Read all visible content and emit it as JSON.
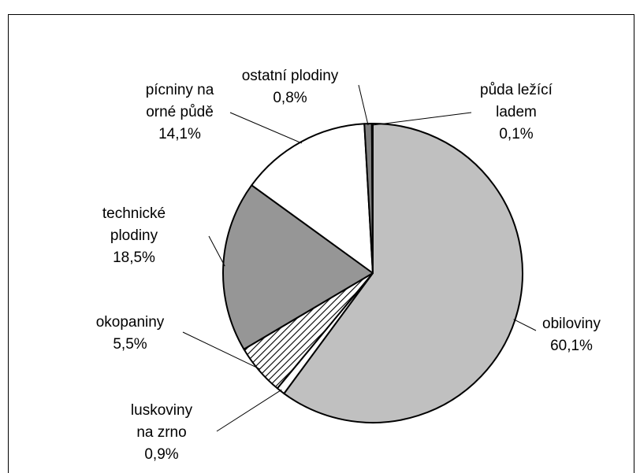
{
  "chart_data": {
    "type": "pie",
    "categories": [
      "obiloviny",
      "luskoviny na zrno",
      "okopaniny",
      "technické plodiny",
      "pícniny na orné půdě",
      "ostatní plodiny",
      "půda ležící ladem"
    ],
    "values": [
      60.1,
      0.9,
      5.5,
      18.5,
      14.1,
      0.8,
      0.1
    ],
    "value_labels": [
      "60,1%",
      "0,9%",
      "5,5%",
      "18,5%",
      "14,1%",
      "0,8%",
      "0,1%"
    ],
    "colors": [
      "#c0c0c0",
      "#ffffff",
      "hatch",
      "#969696",
      "#ffffff",
      "#808080",
      "#ffffff"
    ]
  }
}
